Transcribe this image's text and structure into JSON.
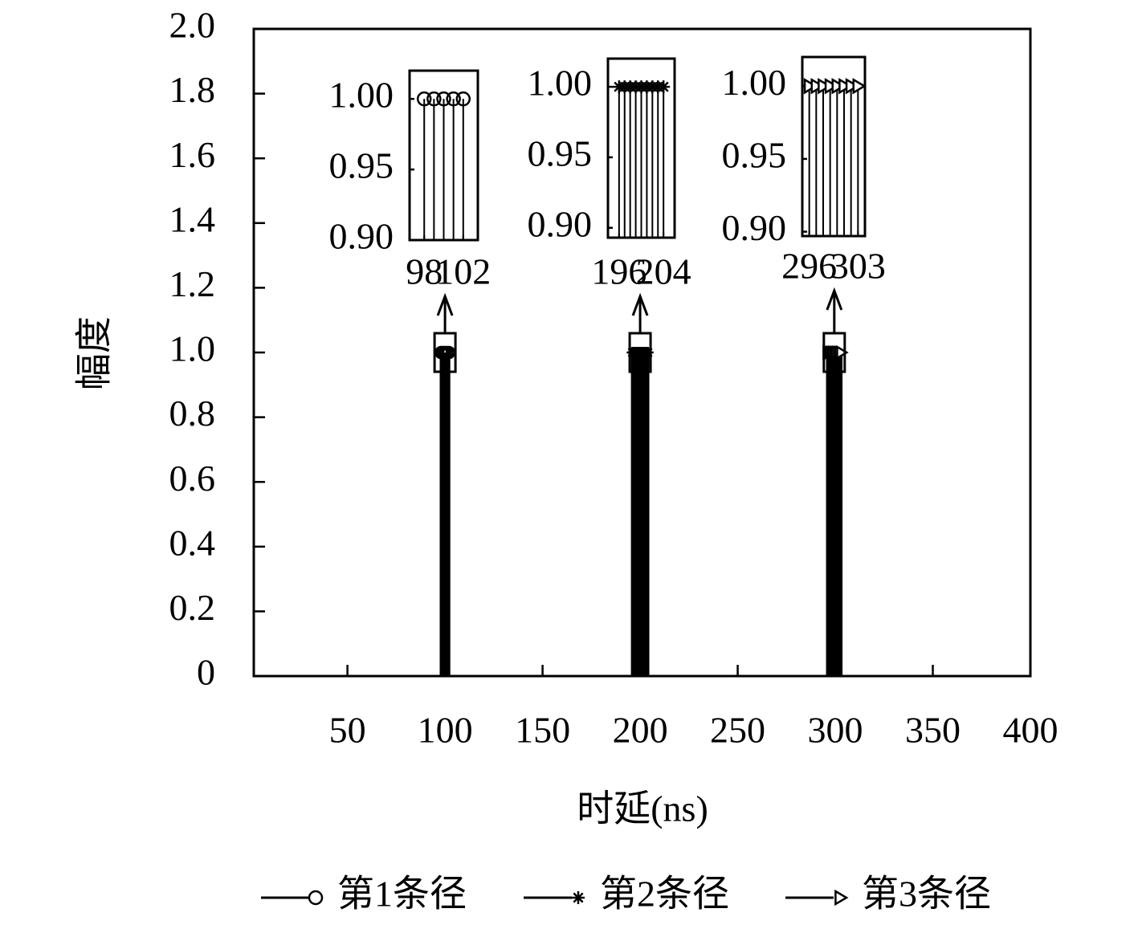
{
  "chart_data": [
    {
      "type": "stem",
      "xlabel": "时延(ns)",
      "ylabel": "幅度",
      "xlim": [
        2,
        400
      ],
      "xticks": [
        50,
        100,
        150,
        200,
        250,
        300,
        350,
        400
      ],
      "ylim": [
        0,
        2
      ],
      "yticks": [
        0,
        0.2,
        0.4,
        0.6,
        0.8,
        {
          "value": 1,
          "label": "1.0"
        },
        1.2,
        1.4,
        1.6,
        1.8,
        {
          "value": 2,
          "label": "2.0"
        }
      ],
      "legend": "bottom",
      "series": [
        {
          "name": "第1条径",
          "color": "#000000",
          "marker": "circle",
          "x": [
            98,
            99,
            100,
            101,
            102
          ],
          "values": [
            1,
            1,
            1,
            1,
            1
          ]
        },
        {
          "name": "第2条径",
          "color": "#000000",
          "marker": "star",
          "x": [
            196,
            197,
            198,
            199,
            200,
            201,
            202,
            203,
            204
          ],
          "values": [
            1,
            1,
            1,
            1,
            1,
            1,
            1,
            1,
            1
          ]
        },
        {
          "name": "第3条径",
          "color": "#000000",
          "marker": "triangle-right",
          "x": [
            296,
            297,
            298,
            299,
            300,
            301,
            302,
            303
          ],
          "values": [
            1,
            1,
            1,
            1,
            1,
            1,
            1,
            1
          ]
        }
      ]
    },
    {
      "type": "stem",
      "xlim": [
        96.5,
        103.5
      ],
      "xticks": [
        98,
        102
      ],
      "ylim": [
        0.9,
        1.02
      ],
      "yticks": [
        {
          "value": 0.9,
          "label": "0.90"
        },
        0.95,
        {
          "value": 1,
          "label": "1.00"
        }
      ],
      "series": [
        {
          "color": "#000000",
          "marker": "circle",
          "x": [
            98,
            99,
            100,
            101,
            102
          ],
          "values": [
            1,
            1,
            1,
            1,
            1
          ]
        }
      ]
    },
    {
      "type": "stem",
      "xlim": [
        194,
        206
      ],
      "xticks": [
        196,
        204
      ],
      "ylim": [
        0.893,
        1.02
      ],
      "yticks": [
        {
          "value": 0.9,
          "label": "0.90"
        },
        0.95,
        {
          "value": 1,
          "label": "1.00"
        }
      ],
      "series": [
        {
          "color": "#000000",
          "marker": "star",
          "x": [
            196,
            197,
            198,
            199,
            200,
            201,
            202,
            203,
            204
          ],
          "values": [
            1,
            1,
            1,
            1,
            1,
            1,
            1,
            1,
            1
          ]
        }
      ]
    },
    {
      "type": "stem",
      "xlim": [
        295,
        304
      ],
      "xticks": [
        296,
        303
      ],
      "ylim": [
        0.897,
        1.02
      ],
      "yticks": [
        {
          "value": 0.9,
          "label": "0.90"
        },
        0.95,
        {
          "value": 1,
          "label": "1.00"
        }
      ],
      "series": [
        {
          "color": "#000000",
          "marker": "triangle-right",
          "x": [
            296,
            297,
            298,
            299,
            300,
            301,
            302,
            303
          ],
          "values": [
            1,
            1,
            1,
            1,
            1,
            1,
            1,
            1
          ]
        }
      ]
    }
  ]
}
